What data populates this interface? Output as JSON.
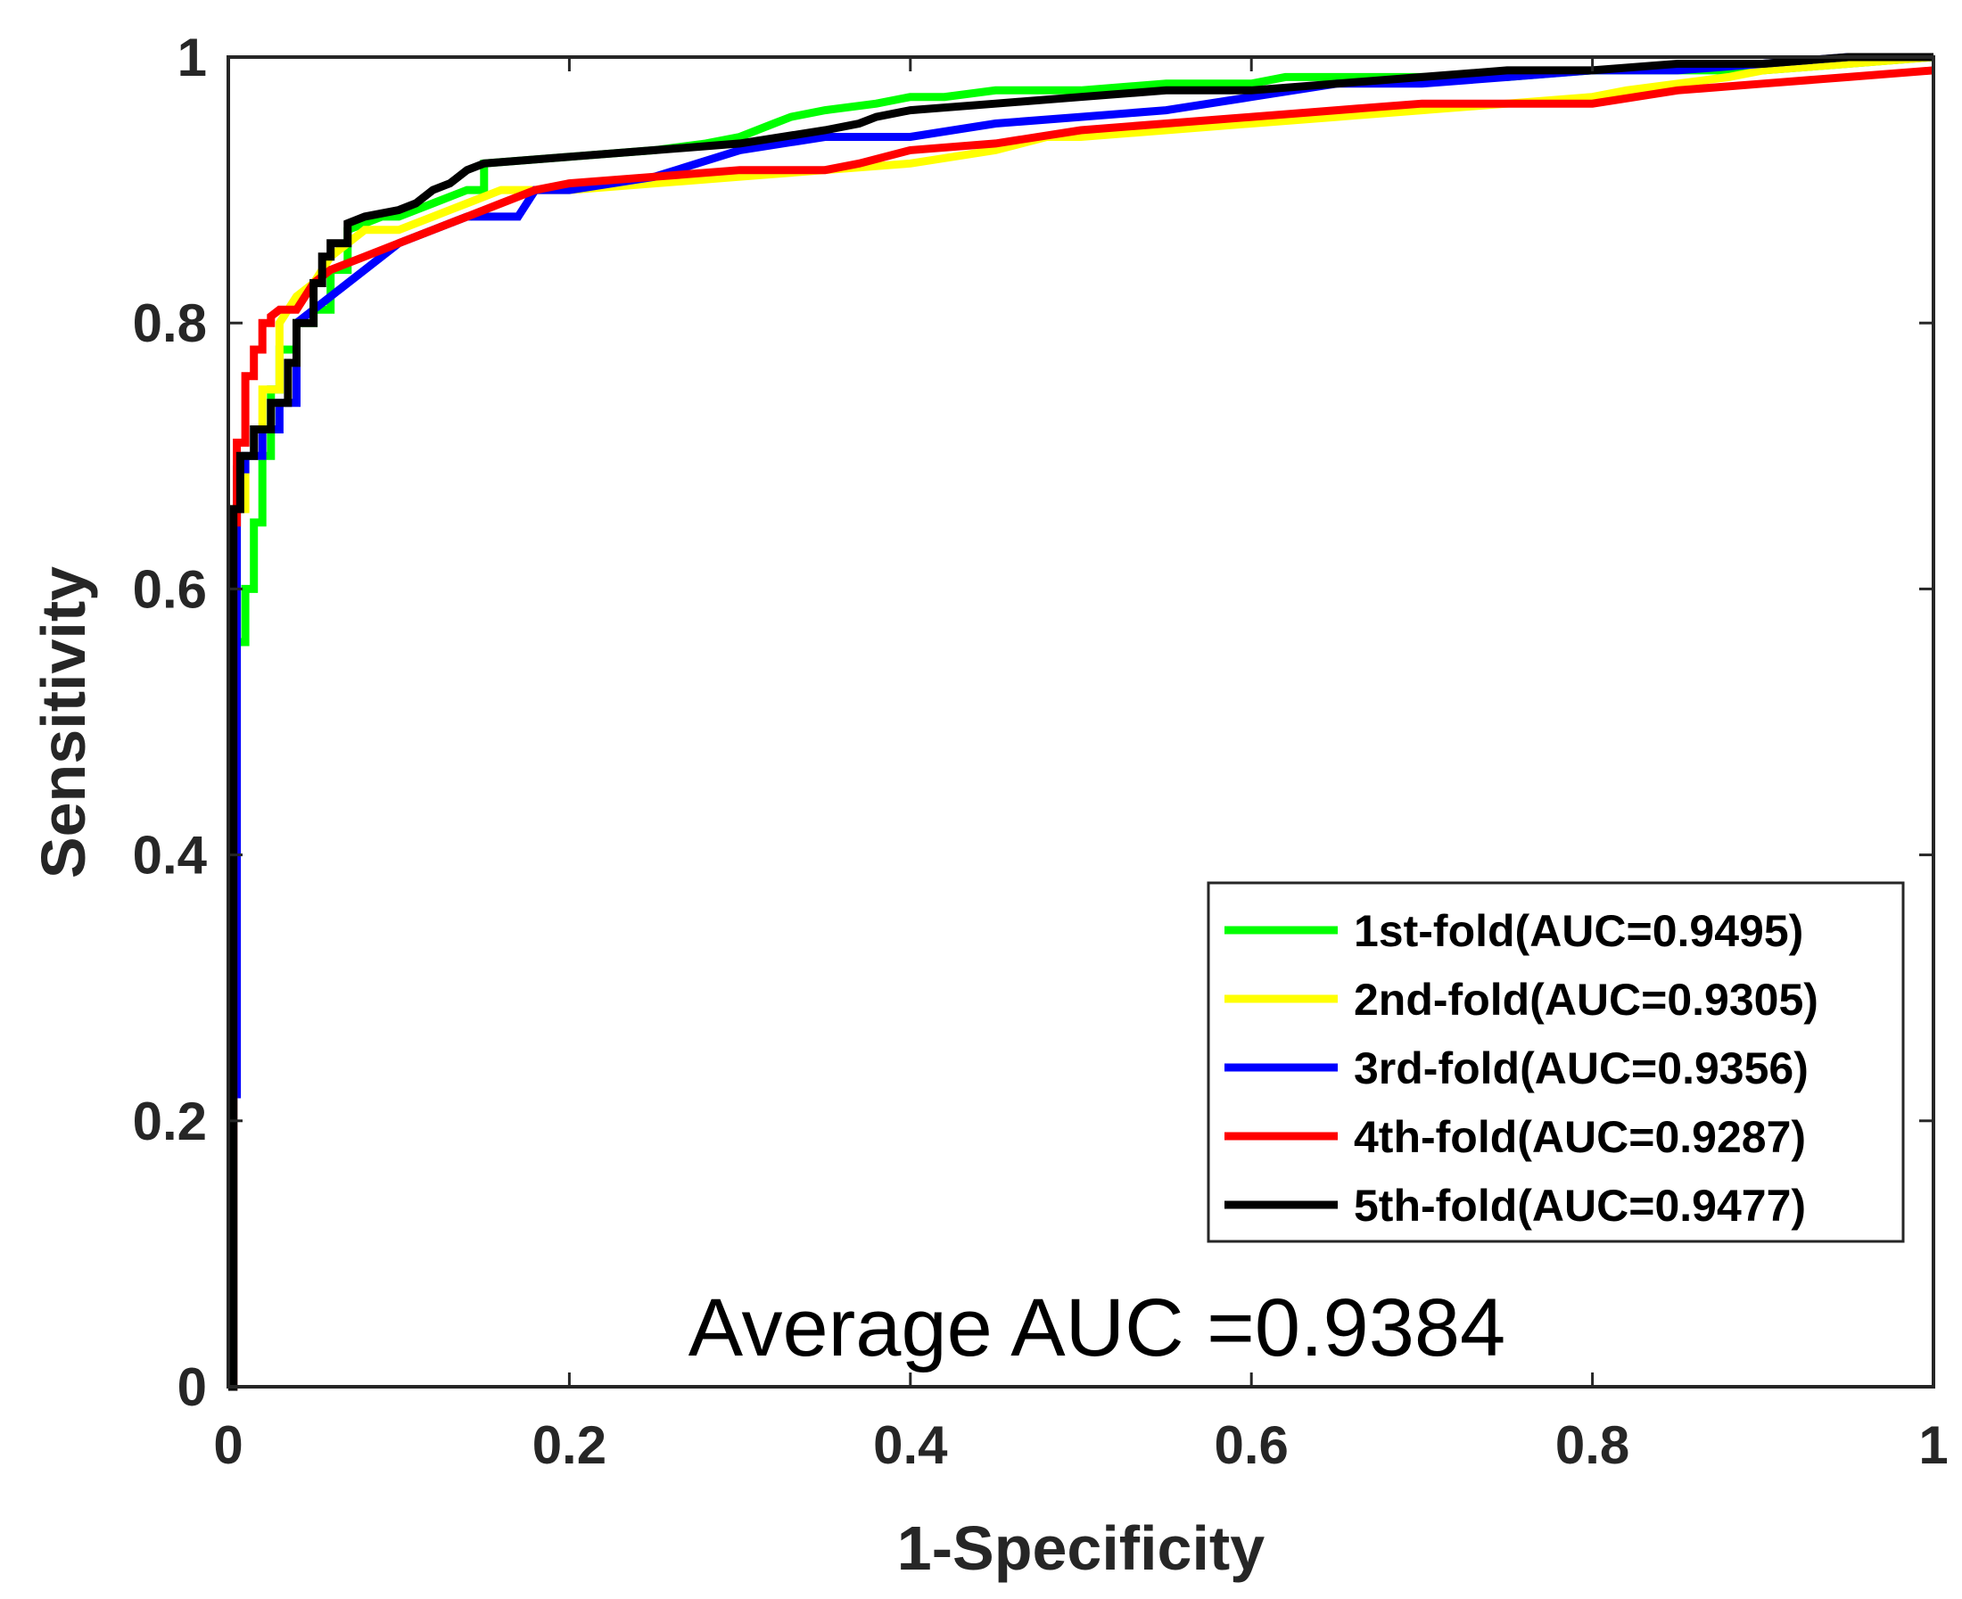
{
  "chart_data": {
    "type": "line",
    "title": "",
    "xlabel": "1-Specificity",
    "ylabel": "Sensitivity",
    "xlim": [
      0,
      1
    ],
    "ylim": [
      0,
      1
    ],
    "xticks": [
      0,
      0.2,
      0.4,
      0.6,
      0.8,
      1
    ],
    "yticks": [
      0,
      0.2,
      0.4,
      0.6,
      0.8,
      1
    ],
    "xtick_labels": [
      "0",
      "0.2",
      "0.4",
      "0.6",
      "0.8",
      "1"
    ],
    "ytick_labels": [
      "0",
      "0.2",
      "0.4",
      "0.6",
      "0.8",
      "1"
    ],
    "grid": false,
    "legend_position": "bottom-right",
    "annotation": "Average AUC =0.9384",
    "series": [
      {
        "name": "1st-fold(AUC=0.9495)",
        "color": "#00ff00",
        "x": [
          0,
          0.003,
          0.003,
          0.01,
          0.01,
          0.015,
          0.015,
          0.02,
          0.02,
          0.025,
          0.025,
          0.03,
          0.03,
          0.04,
          0.04,
          0.05,
          0.05,
          0.06,
          0.06,
          0.07,
          0.07,
          0.08,
          0.09,
          0.1,
          0.12,
          0.14,
          0.15,
          0.15,
          0.2,
          0.25,
          0.28,
          0.3,
          0.32,
          0.33,
          0.35,
          0.38,
          0.4,
          0.42,
          0.45,
          0.5,
          0.55,
          0.6,
          0.62,
          0.65,
          0.7,
          0.75,
          0.8,
          0.85,
          0.9,
          0.95,
          1.0
        ],
        "y": [
          0,
          0,
          0.56,
          0.56,
          0.6,
          0.6,
          0.65,
          0.65,
          0.7,
          0.7,
          0.75,
          0.75,
          0.78,
          0.78,
          0.8,
          0.8,
          0.81,
          0.81,
          0.84,
          0.84,
          0.87,
          0.875,
          0.88,
          0.88,
          0.89,
          0.9,
          0.9,
          0.92,
          0.925,
          0.93,
          0.935,
          0.94,
          0.95,
          0.955,
          0.96,
          0.965,
          0.97,
          0.97,
          0.975,
          0.975,
          0.98,
          0.98,
          0.985,
          0.985,
          0.985,
          0.985,
          0.99,
          0.99,
          0.99,
          0.995,
          1.0
        ]
      },
      {
        "name": "2nd-fold(AUC=0.9305)",
        "color": "#ffff00",
        "x": [
          0,
          0.003,
          0.003,
          0.01,
          0.01,
          0.02,
          0.02,
          0.03,
          0.03,
          0.04,
          0.05,
          0.06,
          0.08,
          0.1,
          0.12,
          0.14,
          0.16,
          0.18,
          0.2,
          0.25,
          0.3,
          0.35,
          0.4,
          0.45,
          0.48,
          0.5,
          0.55,
          0.6,
          0.65,
          0.7,
          0.75,
          0.8,
          0.82,
          0.85,
          0.88,
          0.9,
          0.95,
          1.0
        ],
        "y": [
          0,
          0,
          0.66,
          0.66,
          0.7,
          0.7,
          0.75,
          0.75,
          0.8,
          0.82,
          0.83,
          0.85,
          0.87,
          0.87,
          0.88,
          0.89,
          0.9,
          0.9,
          0.9,
          0.905,
          0.91,
          0.915,
          0.92,
          0.93,
          0.94,
          0.94,
          0.945,
          0.95,
          0.955,
          0.96,
          0.965,
          0.97,
          0.975,
          0.98,
          0.985,
          0.99,
          0.995,
          1.0
        ]
      },
      {
        "name": "3rd-fold(AUC=0.9356)",
        "color": "#0000ff",
        "x": [
          0,
          0.003,
          0.003,
          0.005,
          0.005,
          0.01,
          0.01,
          0.02,
          0.02,
          0.03,
          0.03,
          0.04,
          0.04,
          0.06,
          0.08,
          0.1,
          0.12,
          0.14,
          0.15,
          0.17,
          0.18,
          0.2,
          0.25,
          0.3,
          0.35,
          0.4,
          0.45,
          0.5,
          0.55,
          0.6,
          0.65,
          0.7,
          0.75,
          0.8,
          0.85,
          0.9,
          0.95,
          1.0
        ],
        "y": [
          0,
          0,
          0.22,
          0.22,
          0.69,
          0.69,
          0.7,
          0.7,
          0.72,
          0.72,
          0.74,
          0.74,
          0.8,
          0.82,
          0.84,
          0.86,
          0.87,
          0.88,
          0.88,
          0.88,
          0.9,
          0.9,
          0.91,
          0.93,
          0.94,
          0.94,
          0.95,
          0.955,
          0.96,
          0.97,
          0.98,
          0.98,
          0.985,
          0.99,
          0.99,
          0.995,
          1.0,
          1.0
        ]
      },
      {
        "name": "4th-fold(AUC=0.9287)",
        "color": "#ff0000",
        "x": [
          0,
          0.003,
          0.003,
          0.005,
          0.005,
          0.01,
          0.01,
          0.015,
          0.015,
          0.02,
          0.02,
          0.025,
          0.025,
          0.03,
          0.04,
          0.05,
          0.06,
          0.08,
          0.1,
          0.12,
          0.14,
          0.16,
          0.18,
          0.2,
          0.25,
          0.3,
          0.35,
          0.37,
          0.4,
          0.45,
          0.5,
          0.55,
          0.6,
          0.65,
          0.7,
          0.75,
          0.8,
          0.85,
          0.9,
          0.95,
          1.0
        ],
        "y": [
          0,
          0,
          0.65,
          0.65,
          0.71,
          0.71,
          0.76,
          0.76,
          0.78,
          0.78,
          0.8,
          0.8,
          0.805,
          0.81,
          0.81,
          0.83,
          0.84,
          0.85,
          0.86,
          0.87,
          0.88,
          0.89,
          0.9,
          0.905,
          0.91,
          0.915,
          0.915,
          0.92,
          0.93,
          0.935,
          0.945,
          0.95,
          0.955,
          0.96,
          0.965,
          0.965,
          0.965,
          0.975,
          0.98,
          0.985,
          0.99
        ]
      },
      {
        "name": "5th-fold(AUC=0.9477)",
        "color": "#000000",
        "x": [
          0,
          0.003,
          0.003,
          0.007,
          0.007,
          0.015,
          0.015,
          0.025,
          0.025,
          0.035,
          0.035,
          0.04,
          0.04,
          0.05,
          0.05,
          0.055,
          0.055,
          0.06,
          0.06,
          0.07,
          0.07,
          0.08,
          0.1,
          0.11,
          0.12,
          0.13,
          0.14,
          0.15,
          0.2,
          0.25,
          0.3,
          0.35,
          0.37,
          0.38,
          0.4,
          0.45,
          0.5,
          0.55,
          0.6,
          0.65,
          0.7,
          0.75,
          0.8,
          0.85,
          0.9,
          0.95,
          1.0
        ],
        "y": [
          0,
          0,
          0.66,
          0.66,
          0.7,
          0.7,
          0.72,
          0.72,
          0.74,
          0.74,
          0.77,
          0.77,
          0.8,
          0.8,
          0.83,
          0.83,
          0.85,
          0.85,
          0.86,
          0.86,
          0.875,
          0.88,
          0.885,
          0.89,
          0.9,
          0.905,
          0.915,
          0.92,
          0.925,
          0.93,
          0.935,
          0.945,
          0.95,
          0.955,
          0.96,
          0.965,
          0.97,
          0.975,
          0.975,
          0.98,
          0.985,
          0.99,
          0.99,
          0.995,
          0.995,
          1.0,
          1.0
        ]
      }
    ]
  }
}
